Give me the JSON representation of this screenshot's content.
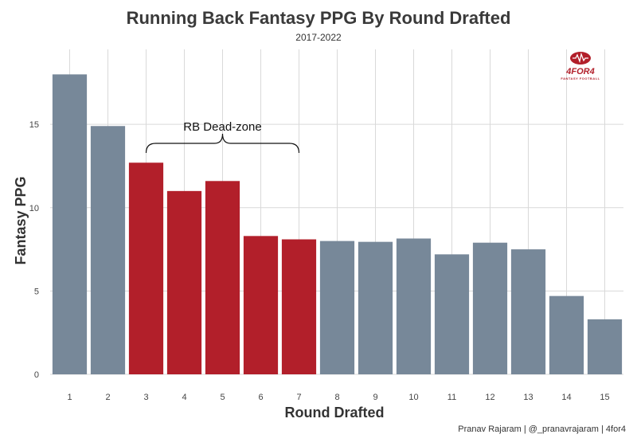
{
  "title": "Running Back Fantasy PPG By Round Drafted",
  "subtitle": "2017-2022",
  "caption": "Pranav Rajaram | @_pranavrajaram | 4for4",
  "logo": {
    "text": "4FOR4",
    "subtext": "FANTASY FOOTBALL",
    "icon": "football-icon"
  },
  "colors": {
    "highlight": "#b21f2a",
    "default": "#778899",
    "grid": "#d9d9d9"
  },
  "chart_data": {
    "type": "bar",
    "title": "Running Back Fantasy PPG By Round Drafted",
    "subtitle": "2017-2022",
    "xlabel": "Round Drafted",
    "ylabel": "Fantasy PPG",
    "categories": [
      "1",
      "2",
      "3",
      "4",
      "5",
      "6",
      "7",
      "8",
      "9",
      "10",
      "11",
      "12",
      "13",
      "14",
      "15"
    ],
    "values": [
      18.0,
      14.9,
      12.7,
      11.0,
      11.6,
      8.3,
      8.1,
      8.0,
      7.95,
      8.15,
      7.2,
      7.9,
      7.5,
      4.7,
      3.3
    ],
    "highlighted_categories": [
      "3",
      "4",
      "5",
      "6",
      "7"
    ],
    "yticks": [
      0,
      5,
      10,
      15
    ],
    "ylim": [
      0,
      19.5
    ],
    "grid": true,
    "legend": "none",
    "annotation": {
      "text": "RB Dead-zone",
      "from_category": "3",
      "to_category": "7"
    }
  }
}
